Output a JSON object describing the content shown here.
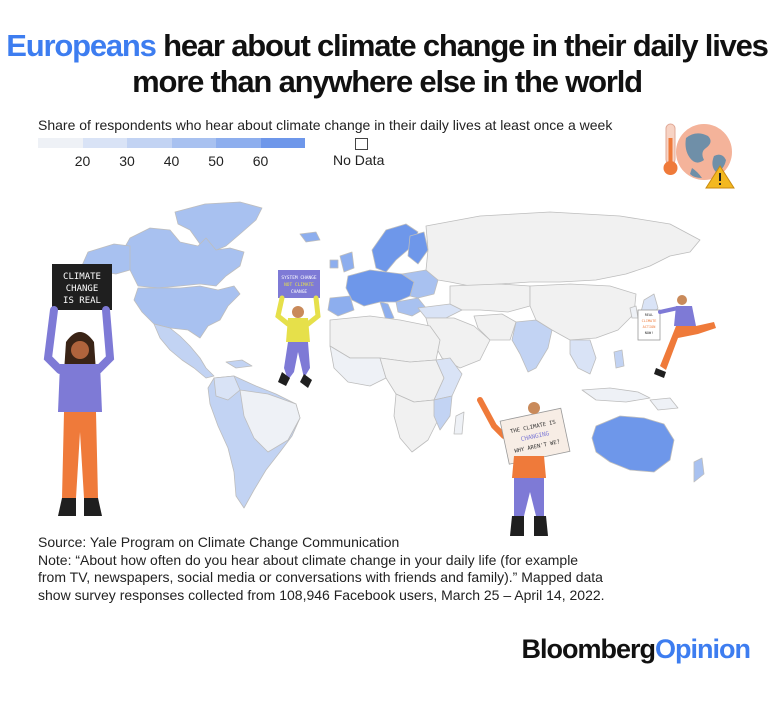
{
  "title": {
    "highlight": "Europeans",
    "rest": " hear about climate change in their daily lives more than anywhere else in the world"
  },
  "subtitle": "Share of respondents who hear about climate change in their daily lives at least once a week",
  "legend": {
    "bins": [
      "20",
      "30",
      "40",
      "50",
      "60"
    ],
    "colors": [
      "#eef1f6",
      "#d9e3f6",
      "#c2d3f3",
      "#a8c1f0",
      "#8daeee",
      "#6e97ea"
    ],
    "no_data": "No Data"
  },
  "source": "Source: Yale Program on Climate Change Communication",
  "note": "Note: “About how often do you hear about climate change in your daily life (for example from TV, newspapers, social media or conversations with friends and family).” Mapped data show survey responses collected from 108,946 Facebook users, March 25 – April 14, 2022.",
  "logo": {
    "part1": "Bloomberg",
    "part2": "Opinion"
  },
  "signs": {
    "left": [
      "CLIMATE",
      "CHANGE",
      "IS REAL"
    ],
    "center": [
      "SYSTEM CHANGE",
      "NOT CLIMATE",
      "CHANGE"
    ],
    "right_small": [
      "REAL",
      "CLIMATE",
      "ACTION",
      "NOW!"
    ],
    "bottom": [
      "THE CLIMATE IS",
      "CHANGING",
      "WHY AREN'T WE?"
    ]
  },
  "colors": {
    "accent": "#3d7df0",
    "land_nodata": "#f1f1f1",
    "border": "#bfbfbf",
    "orange": "#ef7a3a",
    "purple": "#7e7ad6",
    "yellow": "#e6e04a"
  }
}
